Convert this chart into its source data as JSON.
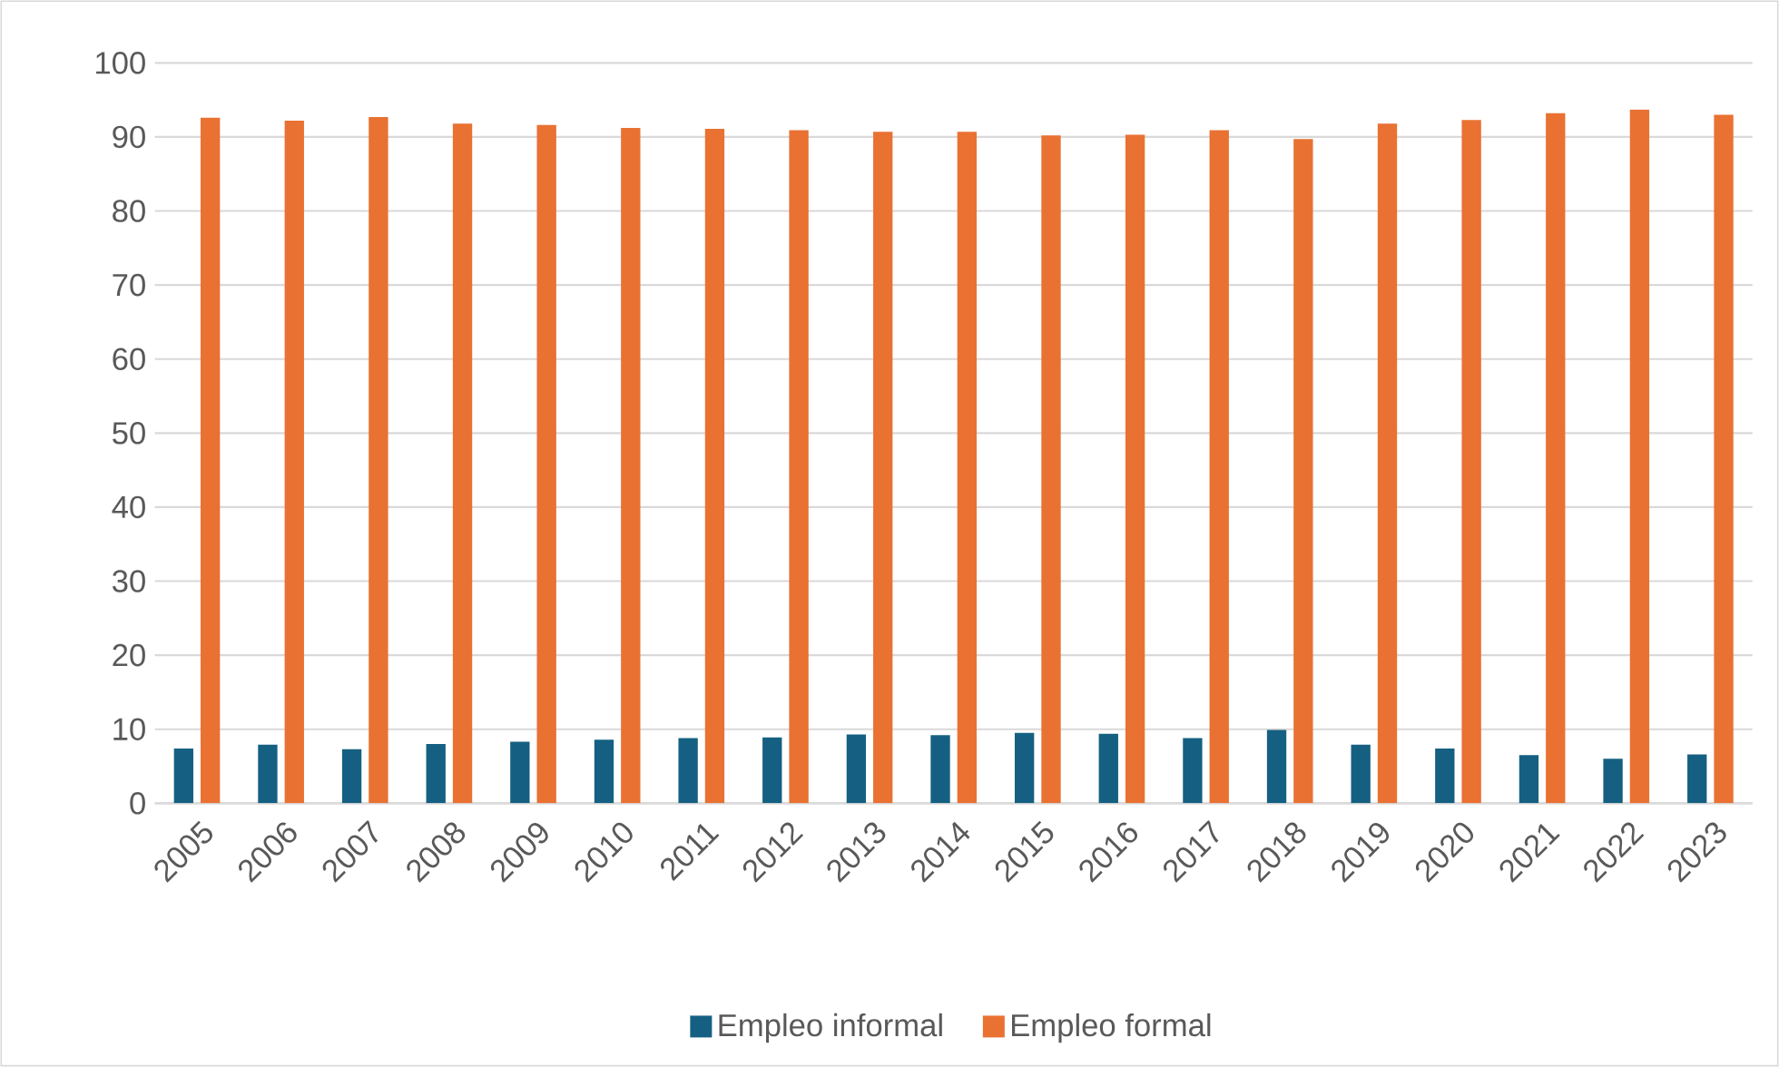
{
  "chart_data": {
    "type": "bar",
    "categories": [
      "2005",
      "2006",
      "2007",
      "2008",
      "2009",
      "2010",
      "2011",
      "2012",
      "2013",
      "2014",
      "2015",
      "2016",
      "2017",
      "2018",
      "2019",
      "2020",
      "2021",
      "2022",
      "2023"
    ],
    "series": [
      {
        "name": "Empleo informal",
        "color": "#156082",
        "values": [
          7.4,
          7.9,
          7.3,
          8.0,
          8.3,
          8.6,
          8.8,
          8.9,
          9.3,
          9.2,
          9.5,
          9.4,
          8.8,
          9.9,
          7.9,
          7.4,
          6.5,
          6.0,
          6.6
        ]
      },
      {
        "name": "Empleo formal",
        "color": "#e97132",
        "values": [
          92.6,
          92.2,
          92.7,
          91.8,
          91.6,
          91.2,
          91.1,
          90.9,
          90.7,
          90.7,
          90.2,
          90.3,
          90.9,
          89.7,
          91.8,
          92.3,
          93.2,
          93.7,
          93.0
        ]
      }
    ],
    "ylim": [
      0,
      100
    ],
    "yticks": [
      0,
      10,
      20,
      30,
      40,
      50,
      60,
      70,
      80,
      90,
      100
    ],
    "grid": "y",
    "legend": "bottom"
  }
}
